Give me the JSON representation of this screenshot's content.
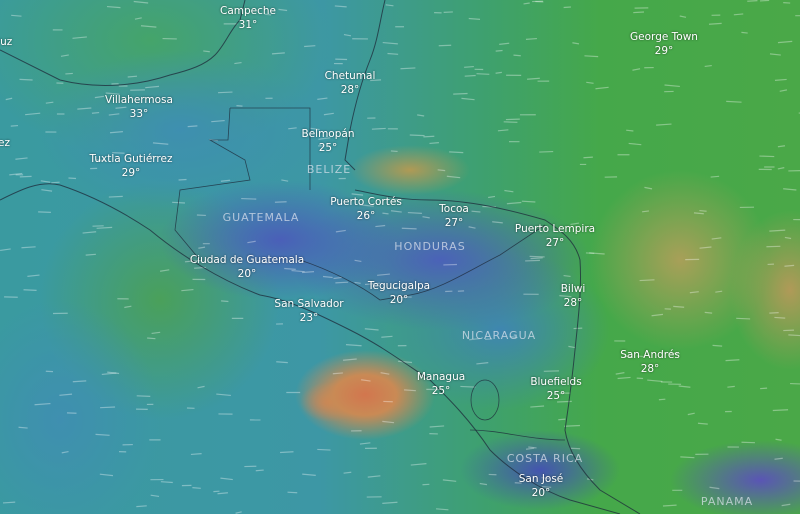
{
  "cities": [
    {
      "name": "Campeche",
      "temp": "31°"
    },
    {
      "name": "George Town",
      "temp": "29°"
    },
    {
      "name": "Chetumal",
      "temp": "28°"
    },
    {
      "name": "Villahermosa",
      "temp": "33°"
    },
    {
      "name": "Belmopán",
      "temp": "25°"
    },
    {
      "name": "Tuxtla Gutiérrez",
      "temp": "29°"
    },
    {
      "name": "Puerto Cortés",
      "temp": "26°"
    },
    {
      "name": "Tocoa",
      "temp": "27°"
    },
    {
      "name": "Puerto Lempira",
      "temp": "27°"
    },
    {
      "name": "Ciudad de Guatemala",
      "temp": "20°"
    },
    {
      "name": "Tegucigalpa",
      "temp": "20°"
    },
    {
      "name": "Bilwi",
      "temp": "28°"
    },
    {
      "name": "San Salvador",
      "temp": "23°"
    },
    {
      "name": "San Andrés",
      "temp": "28°"
    },
    {
      "name": "Managua",
      "temp": "25°"
    },
    {
      "name": "Bluefields",
      "temp": "25°"
    },
    {
      "name": "San José",
      "temp": "20°"
    }
  ],
  "partial_labels": [
    "ruz",
    "ez"
  ],
  "countries": [
    "BELIZE",
    "GUATEMALA",
    "HONDURAS",
    "NICARAGUA",
    "COSTA RICA",
    "PANAMA"
  ],
  "legend_colors": {
    "cold": "#4a5fb8",
    "mild": "#3e9aa5",
    "warm": "#45a848",
    "hot": "#d2764e"
  }
}
